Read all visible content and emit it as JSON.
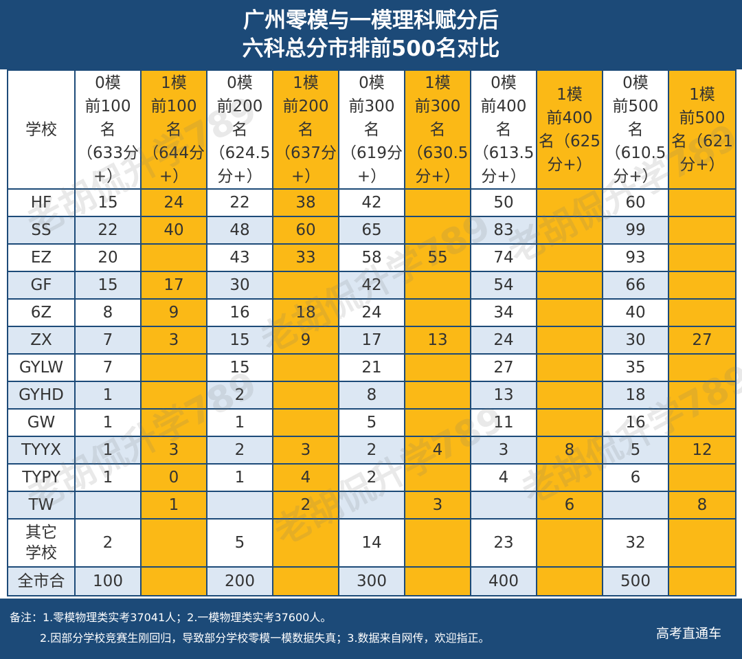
{
  "title": {
    "line1": "广州零模与一模理科赋分后",
    "line2": "六科总分市排前500名对比"
  },
  "table": {
    "corner": "学校",
    "headers": [
      "0模\n前100\n名\n（633分\n+）",
      "1模\n前100\n名\n（644分\n+）",
      "0模\n前200\n名\n（624.5\n分+）",
      "1模\n前200\n名\n（637分\n+）",
      "0模\n前300\n名\n（619分\n+）",
      "1模\n前300\n名\n（630.5\n分+）",
      "0模\n前400\n名\n（613.5\n分+）",
      "1模\n前400\n名（625\n分+）",
      "0模\n前500\n名\n（610.5\n分+）",
      "1模\n前500\n名（621\n分+）"
    ],
    "rows": [
      {
        "school": "HF",
        "cells": [
          "15",
          "24",
          "22",
          "38",
          "42",
          "",
          "50",
          "",
          "60",
          ""
        ]
      },
      {
        "school": "SS",
        "cells": [
          "22",
          "40",
          "48",
          "60",
          "65",
          "",
          "83",
          "",
          "99",
          ""
        ]
      },
      {
        "school": "EZ",
        "cells": [
          "20",
          "",
          "43",
          "33",
          "58",
          "55",
          "74",
          "",
          "93",
          ""
        ]
      },
      {
        "school": "GF",
        "cells": [
          "15",
          "17",
          "30",
          "",
          "42",
          "",
          "54",
          "",
          "66",
          ""
        ]
      },
      {
        "school": "6Z",
        "cells": [
          "8",
          "9",
          "16",
          "18",
          "24",
          "",
          "34",
          "",
          "40",
          ""
        ]
      },
      {
        "school": "ZX",
        "cells": [
          "7",
          "3",
          "15",
          "9",
          "17",
          "13",
          "24",
          "",
          "30",
          "27"
        ]
      },
      {
        "school": "GYLW",
        "cells": [
          "7",
          "",
          "15",
          "",
          "21",
          "",
          "27",
          "",
          "35",
          ""
        ]
      },
      {
        "school": "GYHD",
        "cells": [
          "1",
          "",
          "2",
          "",
          "8",
          "",
          "13",
          "",
          "18",
          ""
        ]
      },
      {
        "school": "GW",
        "cells": [
          "1",
          "",
          "1",
          "",
          "5",
          "",
          "11",
          "",
          "16",
          ""
        ]
      },
      {
        "school": "TYYX",
        "cells": [
          "1",
          "3",
          "2",
          "3",
          "2",
          "4",
          "3",
          "8",
          "5",
          "12"
        ]
      },
      {
        "school": "TYPY",
        "cells": [
          "1",
          "0",
          "1",
          "4",
          "2",
          "",
          "4",
          "",
          "6",
          ""
        ]
      },
      {
        "school": "TW",
        "cells": [
          "",
          "1",
          "",
          "2",
          "",
          "3",
          "",
          "6",
          "",
          "8"
        ]
      },
      {
        "school": "其它\n学校",
        "cells": [
          "2",
          "",
          "5",
          "",
          "14",
          "",
          "23",
          "",
          "32",
          ""
        ]
      },
      {
        "school": "全市合",
        "cells": [
          "100",
          "",
          "200",
          "",
          "300",
          "",
          "400",
          "",
          "500",
          ""
        ]
      }
    ]
  },
  "footer": {
    "note1": "备注：1.零模物理类实考37041人；2.一模物理类实考37600人。",
    "note2": "2.因部分学校竞赛生刚回归，导致部分学校零模一模数据失真；3.数据来自网传，欢迎指正。",
    "brand": "高考直通车"
  },
  "watermark": "老胡侃升学789",
  "colors": {
    "navy": "#1c4a78",
    "gold": "#fbb916",
    "light_blue": "#dce7f3",
    "white": "#ffffff"
  }
}
